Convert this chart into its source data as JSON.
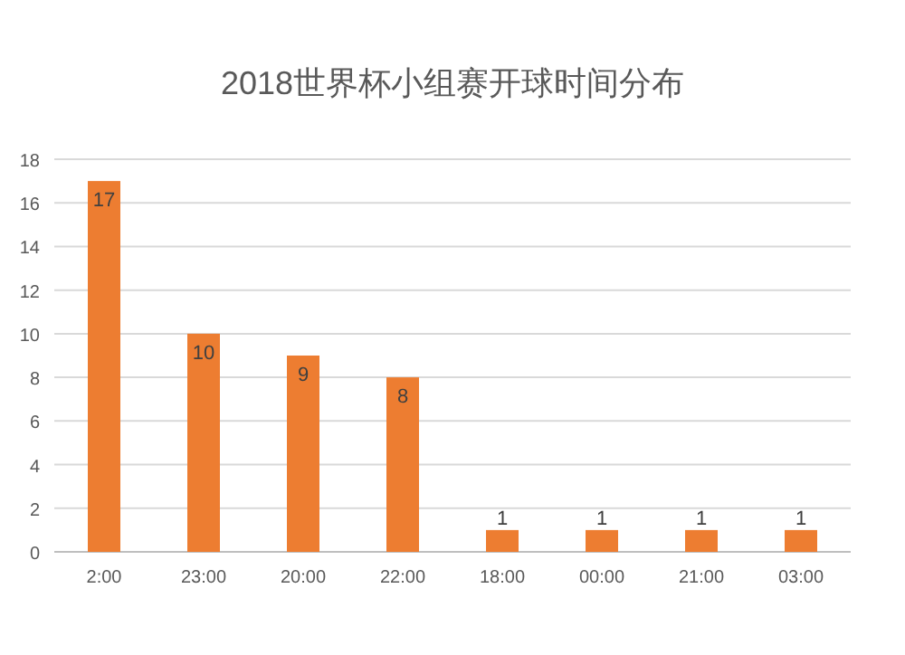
{
  "chart_data": {
    "type": "bar",
    "title": "2018世界杯小组赛开球时间分布",
    "categories": [
      "2:00",
      "23:00",
      "20:00",
      "22:00",
      "18:00",
      "00:00",
      "21:00",
      "03:00"
    ],
    "values": [
      17,
      10,
      9,
      8,
      1,
      1,
      1,
      1
    ],
    "color": "#ed7d31",
    "ylim": [
      0,
      18
    ],
    "yticks": [
      0,
      2,
      4,
      6,
      8,
      10,
      12,
      14,
      16,
      18
    ],
    "grid": "y",
    "data_labels": true
  }
}
